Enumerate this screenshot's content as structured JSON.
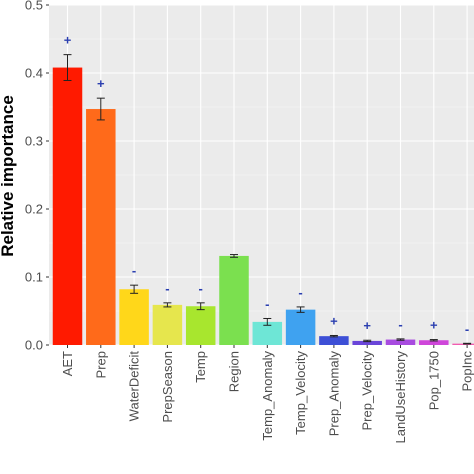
{
  "chart_data": {
    "type": "bar",
    "ylabel": "Relative importance",
    "ylim": [
      0,
      0.5
    ],
    "yticks": [
      "0.0",
      "0.1",
      "0.2",
      "0.3",
      "0.4",
      "0.5"
    ],
    "grid": true,
    "categories": [
      "AET",
      "Prep",
      "WaterDeficit",
      "PrepSeason",
      "Temp",
      "Region",
      "Temp_Anomaly",
      "Temp_Velocity",
      "Prep_Anomaly",
      "Prep_Velocity",
      "LandUseHistory",
      "Pop_1750",
      "PopInc"
    ],
    "values": [
      0.408,
      0.347,
      0.082,
      0.059,
      0.057,
      0.131,
      0.034,
      0.052,
      0.013,
      0.006,
      0.008,
      0.007,
      0.002
    ],
    "errors": [
      0.019,
      0.016,
      0.006,
      0.003,
      0.005,
      0.002,
      0.005,
      0.004,
      0.001,
      0.001,
      0.001,
      0.001,
      0.0005
    ],
    "signs": [
      "+",
      "+",
      "-",
      "-",
      "-",
      "",
      "-",
      "-",
      "+",
      "+",
      "-",
      "+",
      "-"
    ],
    "colors": [
      "#ff1a00",
      "#ff6a1a",
      "#ffd71a",
      "#e6e64d",
      "#a8e62e",
      "#7be04f",
      "#6ee6d6",
      "#3fa2f0",
      "#3d4fd6",
      "#6a45d9",
      "#a84be0",
      "#cf46da",
      "#f25bb0"
    ]
  }
}
